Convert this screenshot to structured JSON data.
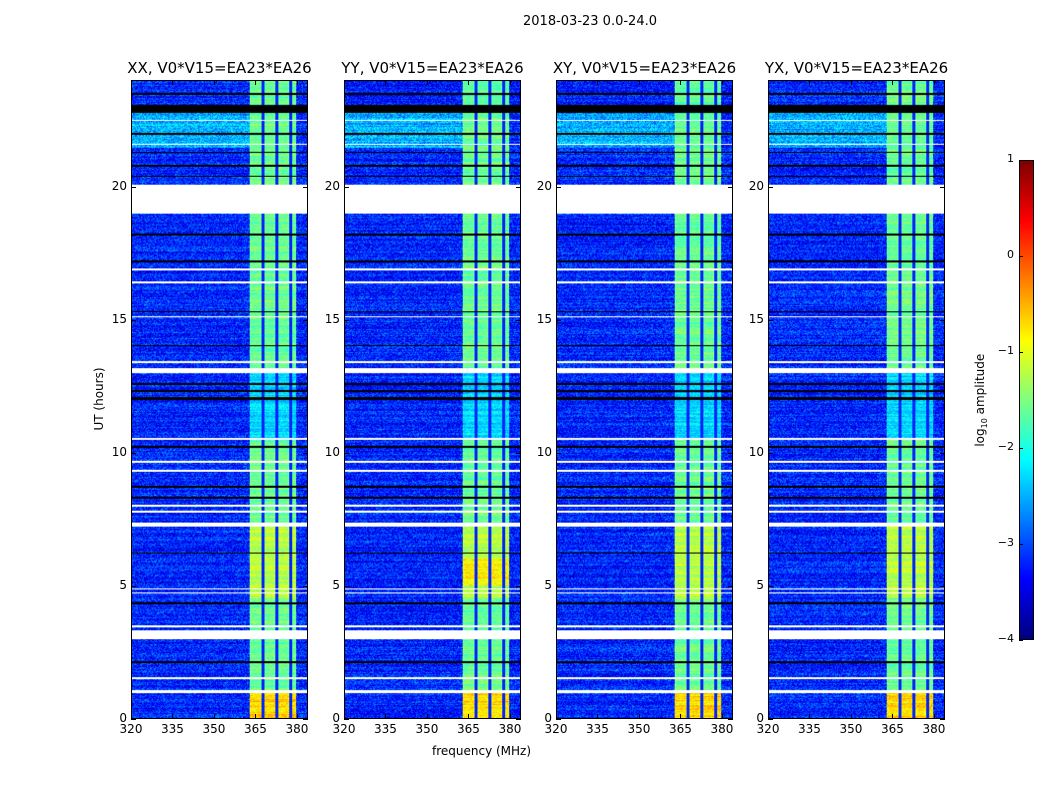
{
  "chart_data": {
    "type": "heatmap",
    "title": "2018-03-23 0.0-24.0",
    "xlabel": "frequency (MHz)",
    "ylabel": "UT (hours)",
    "xlim": [
      320,
      384
    ],
    "ylim": [
      0,
      24
    ],
    "xticks": [
      "320",
      "335",
      "350",
      "365",
      "380"
    ],
    "xtick_values": [
      320,
      335,
      350,
      365,
      380
    ],
    "yticks": [
      "0",
      "5",
      "10",
      "15",
      "20"
    ],
    "ytick_values": [
      0,
      5,
      10,
      15,
      20
    ],
    "panels": [
      {
        "title": "XX, V0*V15=EA23*EA26"
      },
      {
        "title": "YY, V0*V15=EA23*EA26"
      },
      {
        "title": "XY, V0*V15=EA23*EA26"
      },
      {
        "title": "YX, V0*V15=EA23*EA26"
      }
    ],
    "colorbar": {
      "label": "log10 amplitude",
      "label_main": "log",
      "label_sub": "10",
      "label_rest": " amplitude",
      "range": [
        -4,
        1
      ],
      "ticks": [
        "1",
        "0",
        "−1",
        "−2",
        "−3",
        "−4"
      ],
      "tick_values": [
        1,
        0,
        -1,
        -2,
        -3,
        -4
      ],
      "colormap": "jet"
    },
    "background_level": -3.2,
    "bright_band_MHz": [
      363,
      380
    ],
    "bright_band_level": -1.6,
    "band_gaps_MHz": [
      368,
      373,
      378
    ],
    "flagged_ut_ranges": [
      [
        0.95,
        1.05
      ],
      [
        1.45,
        1.55
      ],
      [
        2.95,
        3.3
      ],
      [
        3.42,
        3.48
      ],
      [
        4.68,
        4.74
      ],
      [
        4.84,
        4.9
      ],
      [
        7.2,
        7.38
      ],
      [
        7.72,
        7.8
      ],
      [
        7.98,
        8.04
      ],
      [
        9.28,
        9.36
      ],
      [
        9.6,
        9.7
      ],
      [
        10.48,
        10.55
      ],
      [
        13.0,
        13.2
      ],
      [
        13.38,
        13.44
      ],
      [
        15.08,
        15.14
      ],
      [
        16.38,
        16.44
      ],
      [
        16.88,
        16.94
      ],
      [
        19.0,
        20.1
      ],
      [
        21.58,
        21.64
      ],
      [
        22.48,
        22.54
      ]
    ],
    "zero_ut_ranges": [
      [
        2.05,
        2.15
      ],
      [
        4.28,
        4.34
      ],
      [
        6.18,
        6.24
      ],
      [
        8.28,
        8.34
      ],
      [
        8.68,
        8.74
      ],
      [
        10.18,
        10.24
      ],
      [
        12.0,
        12.1
      ],
      [
        12.3,
        12.36
      ],
      [
        12.55,
        12.62
      ],
      [
        14.0,
        14.06
      ],
      [
        15.28,
        15.34
      ],
      [
        17.18,
        17.24
      ],
      [
        18.18,
        18.24
      ],
      [
        20.38,
        20.44
      ],
      [
        20.78,
        20.84
      ],
      [
        21.28,
        21.34
      ],
      [
        21.98,
        22.04
      ],
      [
        22.8,
        23.1
      ],
      [
        23.48,
        23.54
      ]
    ]
  }
}
